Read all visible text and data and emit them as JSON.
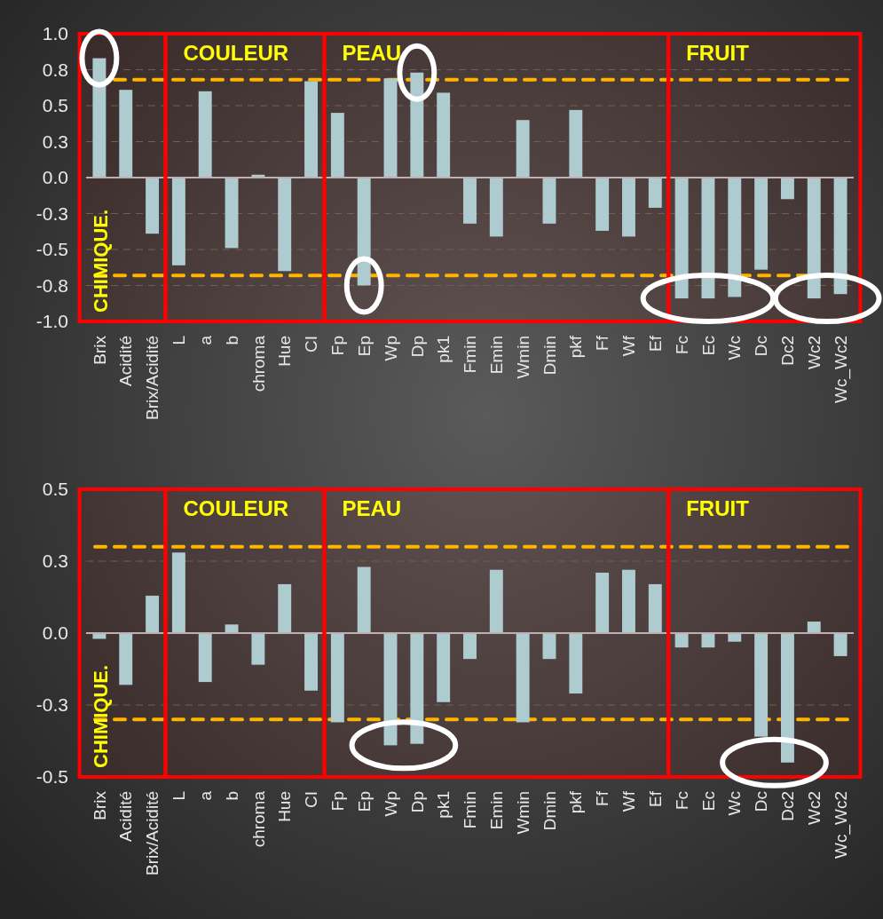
{
  "chart_data": [
    {
      "type": "bar",
      "categories": [
        "Brix",
        "Acidité",
        "Brix/Acidité",
        "L",
        "a",
        "b",
        "chroma",
        "Hue",
        "CI",
        "Fp",
        "Ep",
        "Wp",
        "Dp",
        "pk1",
        "Fmin",
        "Emin",
        "Wmin",
        "Dmin",
        "pkf",
        "Ff",
        "Wf",
        "Ef",
        "Fc",
        "Ec",
        "Wc",
        "Dc",
        "Dc2",
        "Wc2",
        "Wc_Wc2"
      ],
      "values": [
        0.83,
        0.61,
        -0.39,
        -0.61,
        0.6,
        -0.49,
        0.02,
        -0.65,
        0.67,
        0.45,
        -0.75,
        0.69,
        0.73,
        0.59,
        -0.32,
        -0.41,
        0.4,
        -0.32,
        0.47,
        -0.37,
        -0.41,
        -0.21,
        -0.84,
        -0.84,
        -0.83,
        -0.64,
        -0.15,
        -0.84,
        -0.81
      ],
      "color": "#a9d8dc",
      "ylim": [
        -1,
        1
      ],
      "yticks": [
        {
          "value": 1,
          "label": "1.0"
        },
        {
          "value": 0.75,
          "label": "0.8"
        },
        {
          "value": 0.5,
          "label": "0.5"
        },
        {
          "value": 0.25,
          "label": "0.3"
        },
        {
          "value": 0,
          "label": "0.0"
        },
        {
          "value": -0.25,
          "label": "-0.3"
        },
        {
          "value": -0.5,
          "label": "-0.5"
        },
        {
          "value": -0.75,
          "label": "-0.8"
        },
        {
          "value": -1,
          "label": "-1.0"
        }
      ],
      "grid": "y",
      "ref_lines": [
        {
          "axis": "y",
          "value": 0.68,
          "color": "#ffc000",
          "line_style": "dashed"
        },
        {
          "axis": "y",
          "value": -0.68,
          "color": "#ffc000",
          "line_style": "dashed"
        }
      ],
      "bands": [
        {
          "axis": "x",
          "from": "Brix",
          "to": "Brix/Acidité",
          "label": "CHIMIQUE.",
          "color": "#ff0000"
        },
        {
          "axis": "x",
          "from": "L",
          "to": "CI",
          "label": "COULEUR",
          "color": "#ff0000"
        },
        {
          "axis": "x",
          "from": "Fp",
          "to": "Ef",
          "label": "PEAU",
          "color": "#ff0000"
        },
        {
          "axis": "x",
          "from": "Fc",
          "to": "Wc_Wc2",
          "label": "FRUIT",
          "color": "#ff0000"
        }
      ]
    },
    {
      "type": "bar",
      "categories": [
        "Brix",
        "Acidité",
        "Brix/Acidité",
        "L",
        "a",
        "b",
        "chroma",
        "Hue",
        "CI",
        "Fp",
        "Ep",
        "Wp",
        "Dp",
        "pk1",
        "Fmin",
        "Emin",
        "Wmin",
        "Dmin",
        "pkf",
        "Ff",
        "Wf",
        "Ef",
        "Fc",
        "Ec",
        "Wc",
        "Dc",
        "Dc2",
        "Wc2",
        "Wc_Wc2"
      ],
      "values": [
        -0.02,
        -0.18,
        0.13,
        0.28,
        -0.17,
        0.03,
        -0.11,
        0.17,
        -0.2,
        -0.31,
        0.23,
        -0.39,
        -0.385,
        -0.24,
        -0.09,
        0.22,
        -0.31,
        -0.09,
        -0.21,
        0.21,
        0.22,
        0.17,
        -0.05,
        -0.05,
        -0.03,
        -0.36,
        -0.45,
        0.04,
        -0.08
      ],
      "color": "#a9d8dc",
      "ylim": [
        -0.5,
        0.5
      ],
      "yticks": [
        {
          "value": 0.5,
          "label": "0.5"
        },
        {
          "value": 0.25,
          "label": "0.3"
        },
        {
          "value": 0,
          "label": "0.0"
        },
        {
          "value": -0.25,
          "label": "-0.3"
        },
        {
          "value": -0.5,
          "label": "-0.5"
        }
      ],
      "grid": "y",
      "ref_lines": [
        {
          "axis": "y",
          "value": 0.3,
          "color": "#ffc000",
          "line_style": "dashed"
        },
        {
          "axis": "y",
          "value": -0.3,
          "color": "#ffc000",
          "line_style": "dashed"
        }
      ],
      "bands": [
        {
          "axis": "x",
          "from": "Brix",
          "to": "Brix/Acidité",
          "label": "CHIMIQUE.",
          "color": "#ff0000"
        },
        {
          "axis": "x",
          "from": "L",
          "to": "CI",
          "label": "COULEUR",
          "color": "#ff0000"
        },
        {
          "axis": "x",
          "from": "Fp",
          "to": "Ef",
          "label": "PEAU",
          "color": "#ff0000"
        },
        {
          "axis": "x",
          "from": "Fc",
          "to": "Wc_Wc2",
          "label": "FRUIT",
          "color": "#ff0000"
        }
      ]
    }
  ]
}
